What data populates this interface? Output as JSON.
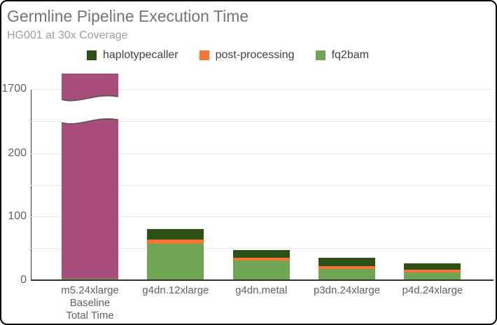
{
  "chart_data": {
    "type": "bar",
    "stacked": true,
    "title": "Germline Pipeline Execution Time",
    "subtitle": "HG001 at 30x Coverage",
    "legend_position": "top",
    "grid": true,
    "categories": [
      {
        "label": "m5.24xlarge",
        "sublabels": [
          "Baseline",
          "Total Time"
        ]
      },
      {
        "label": "g4dn.12xlarge",
        "sublabels": []
      },
      {
        "label": "g4dn.metal",
        "sublabels": []
      },
      {
        "label": "p3dn.24xlarge",
        "sublabels": []
      },
      {
        "label": "p4d.24xlarge",
        "sublabels": []
      }
    ],
    "series": [
      {
        "name": "haplotypecaller",
        "color": "#2d5016",
        "values": [
          0,
          16,
          12,
          13,
          10
        ]
      },
      {
        "name": "post-processing",
        "color": "#fa7332",
        "values": [
          0,
          7,
          5,
          5,
          4
        ]
      },
      {
        "name": "fq2bam",
        "color": "#70a653",
        "values": [
          2,
          57,
          30,
          17,
          12
        ]
      }
    ],
    "baseline_bar": {
      "category": "m5.24xlarge",
      "color": "#a84d7a",
      "value_estimate": 1720,
      "exceeds_axis_top": true,
      "note": "purple bar rises past the 1700 gridline; wavy white axis-break band drawn across it"
    },
    "y_axis": {
      "ticks": [
        {
          "value": 0,
          "label": "0"
        },
        {
          "value": 50,
          "label": ""
        },
        {
          "value": 100,
          "label": "100"
        },
        {
          "value": 150,
          "label": ""
        },
        {
          "value": 200,
          "label": "200"
        },
        {
          "value": 250,
          "label": ""
        },
        {
          "value": 1700,
          "label": "1700"
        }
      ],
      "break_between": [
        250,
        1700
      ]
    },
    "colors": {
      "background": "#ffffff",
      "gridline": "#e6e6e6",
      "axis": "#333333",
      "title_text": "#757575",
      "subtitle_text": "#9e9e9e",
      "legend_text": "#424242",
      "axis_label_text": "#616161"
    }
  }
}
